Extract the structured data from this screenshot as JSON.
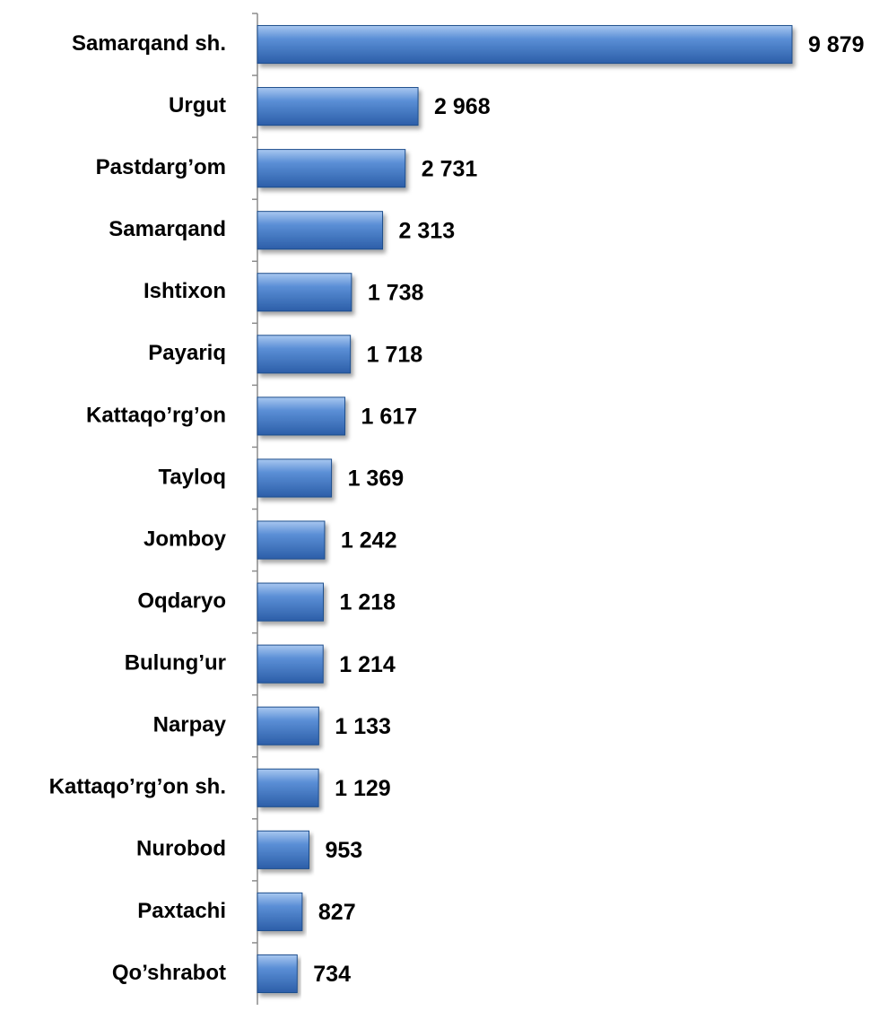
{
  "chart_data": {
    "type": "barh",
    "categories": [
      "Samarqand sh.",
      "Urgut",
      "Pastdarg’om",
      "Samarqand",
      "Ishtixon",
      "Payariq",
      "Kattaqo’rg’on",
      "Tayloq",
      "Jomboy",
      "Oqdaryo",
      "Bulung’ur",
      "Narpay",
      "Kattaqo’rg’on sh.",
      "Nurobod",
      "Paxtachi",
      "Qo’shrabot"
    ],
    "values": [
      9879,
      2968,
      2731,
      2313,
      1738,
      1718,
      1617,
      1369,
      1242,
      1218,
      1214,
      1133,
      1129,
      953,
      827,
      734
    ],
    "value_labels": [
      "9 879",
      "2 968",
      "2 731",
      "2 313",
      "1 738",
      "1 718",
      "1 617",
      "1 369",
      "1 242",
      "1 218",
      "1 214",
      "1 133",
      "1 129",
      "953",
      "827",
      "734"
    ],
    "color": "#3a74c4"
  }
}
